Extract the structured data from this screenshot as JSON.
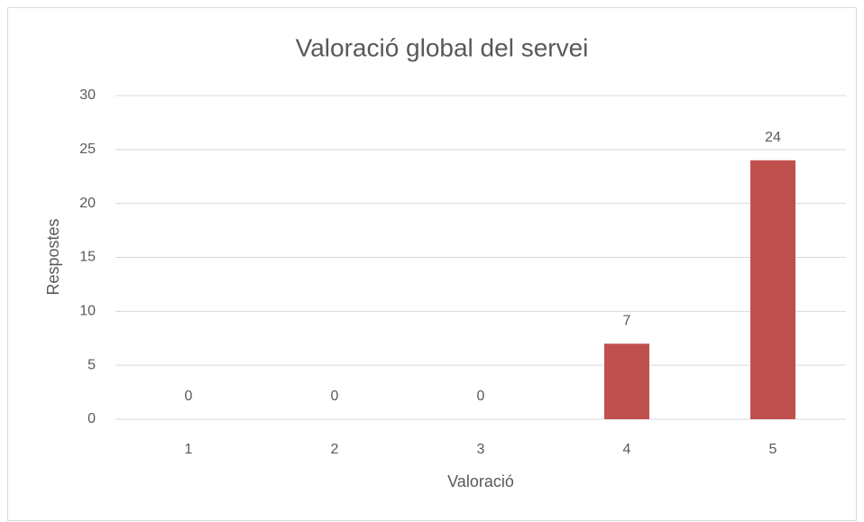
{
  "chart_data": {
    "type": "bar",
    "title": "Valoració global del servei",
    "categories": [
      "1",
      "2",
      "3",
      "4",
      "5"
    ],
    "values": [
      0,
      0,
      0,
      7,
      24
    ],
    "color": "#c0504d",
    "ylim": [
      0,
      30
    ],
    "yticks": [
      0,
      5,
      10,
      15,
      20,
      25,
      30
    ],
    "grid": true,
    "xlabel": "Valoració",
    "ylabel": "Respostes",
    "data_labels": true
  }
}
